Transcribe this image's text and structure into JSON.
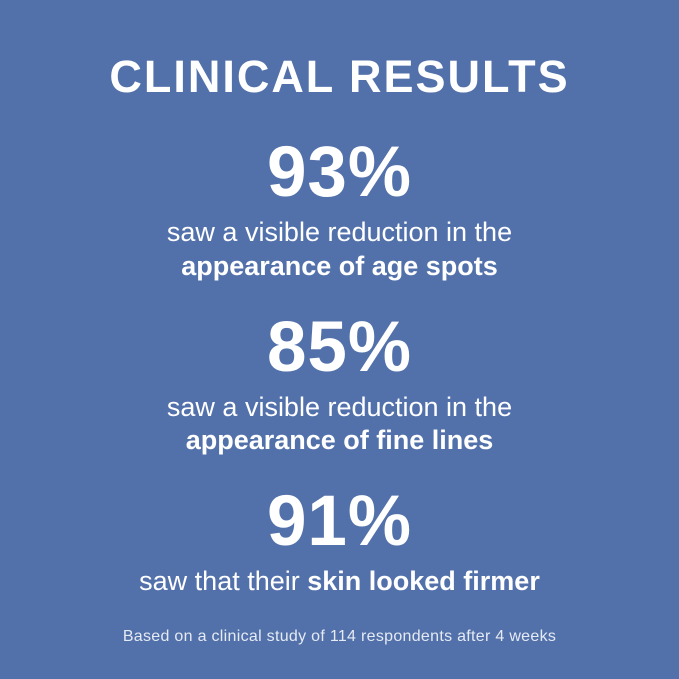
{
  "background_color": "#5271AB",
  "text_color": "#FFFFFF",
  "title": "CLINICAL RESULTS",
  "stats": [
    {
      "value": "93%",
      "description_regular": "saw a visible reduction in the",
      "description_bold": "appearance of age spots"
    },
    {
      "value": "85%",
      "description_regular": "saw a visible reduction in the",
      "description_bold": "appearance of fine lines"
    },
    {
      "value": "91%",
      "description_regular": "saw that their",
      "description_bold": "skin looked firmer"
    }
  ],
  "footnote": "Based on a clinical study of 114 respondents after 4 weeks"
}
